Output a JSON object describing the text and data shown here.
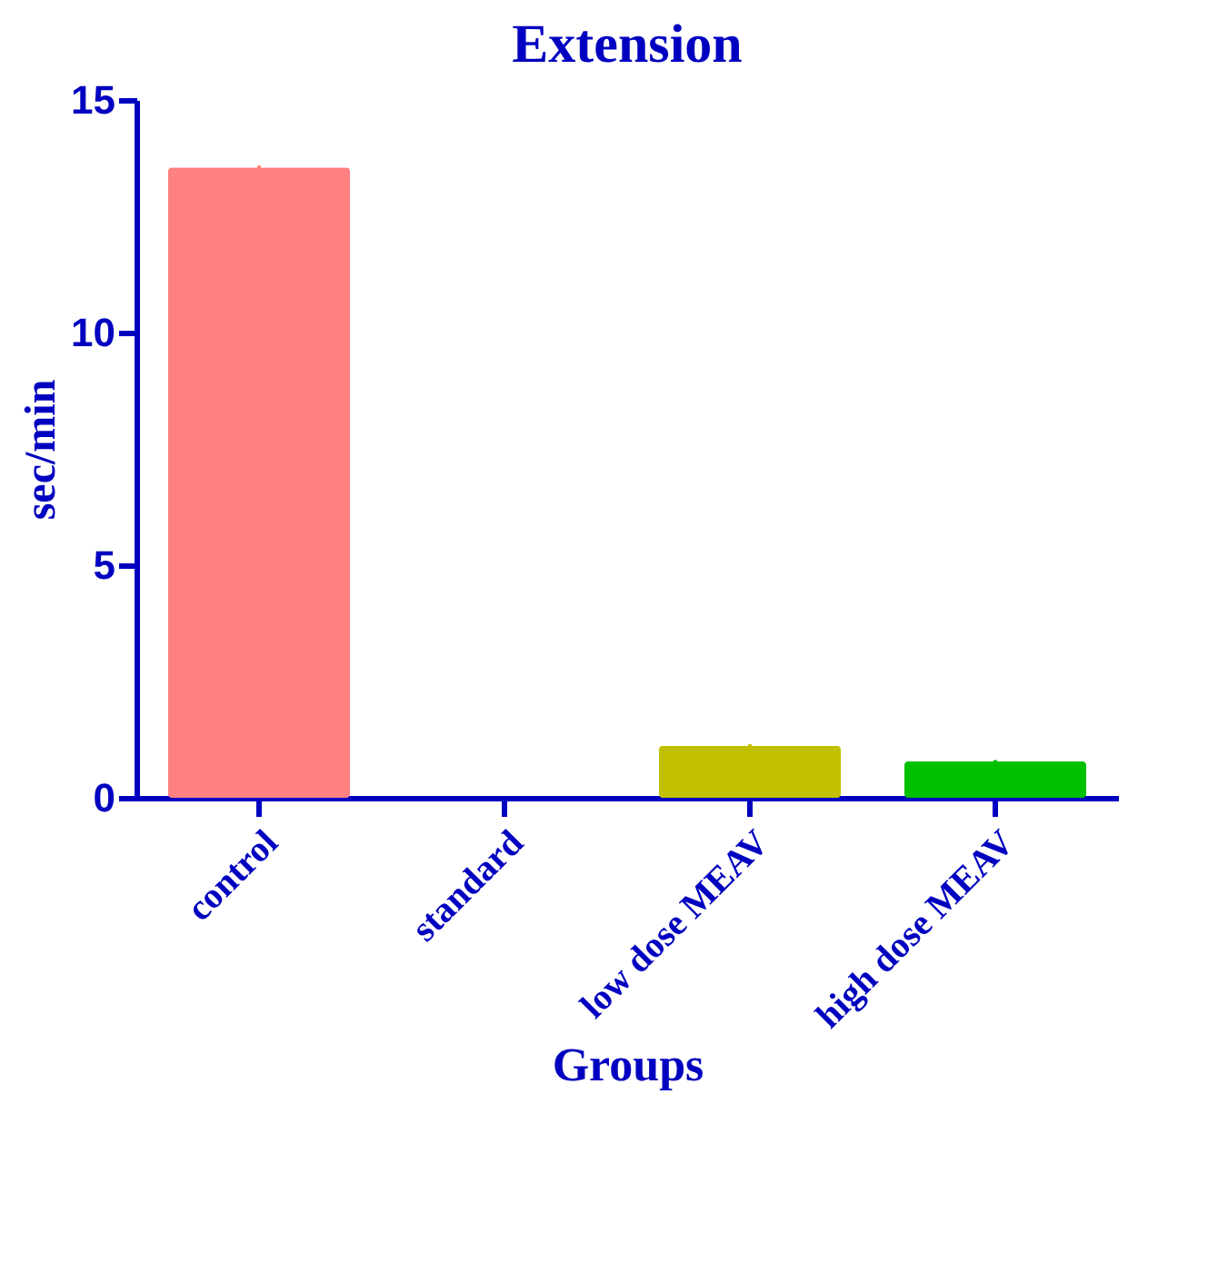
{
  "chart_data": {
    "type": "bar",
    "title": "Extension",
    "xlabel": "Groups",
    "ylabel": "sec/min",
    "categories": [
      "control",
      "standard",
      "low dose MEAV",
      "high dose MEAV"
    ],
    "values": [
      13.55,
      0,
      1.12,
      0.78
    ],
    "errors": [
      0.04,
      null,
      0.03,
      0.03
    ],
    "colors": [
      "#ff8080",
      "#ff8080",
      "#c0c000",
      "#00c000"
    ],
    "ylim": [
      0,
      15
    ],
    "yticks": [
      0,
      5,
      10,
      15
    ],
    "grid": false
  }
}
